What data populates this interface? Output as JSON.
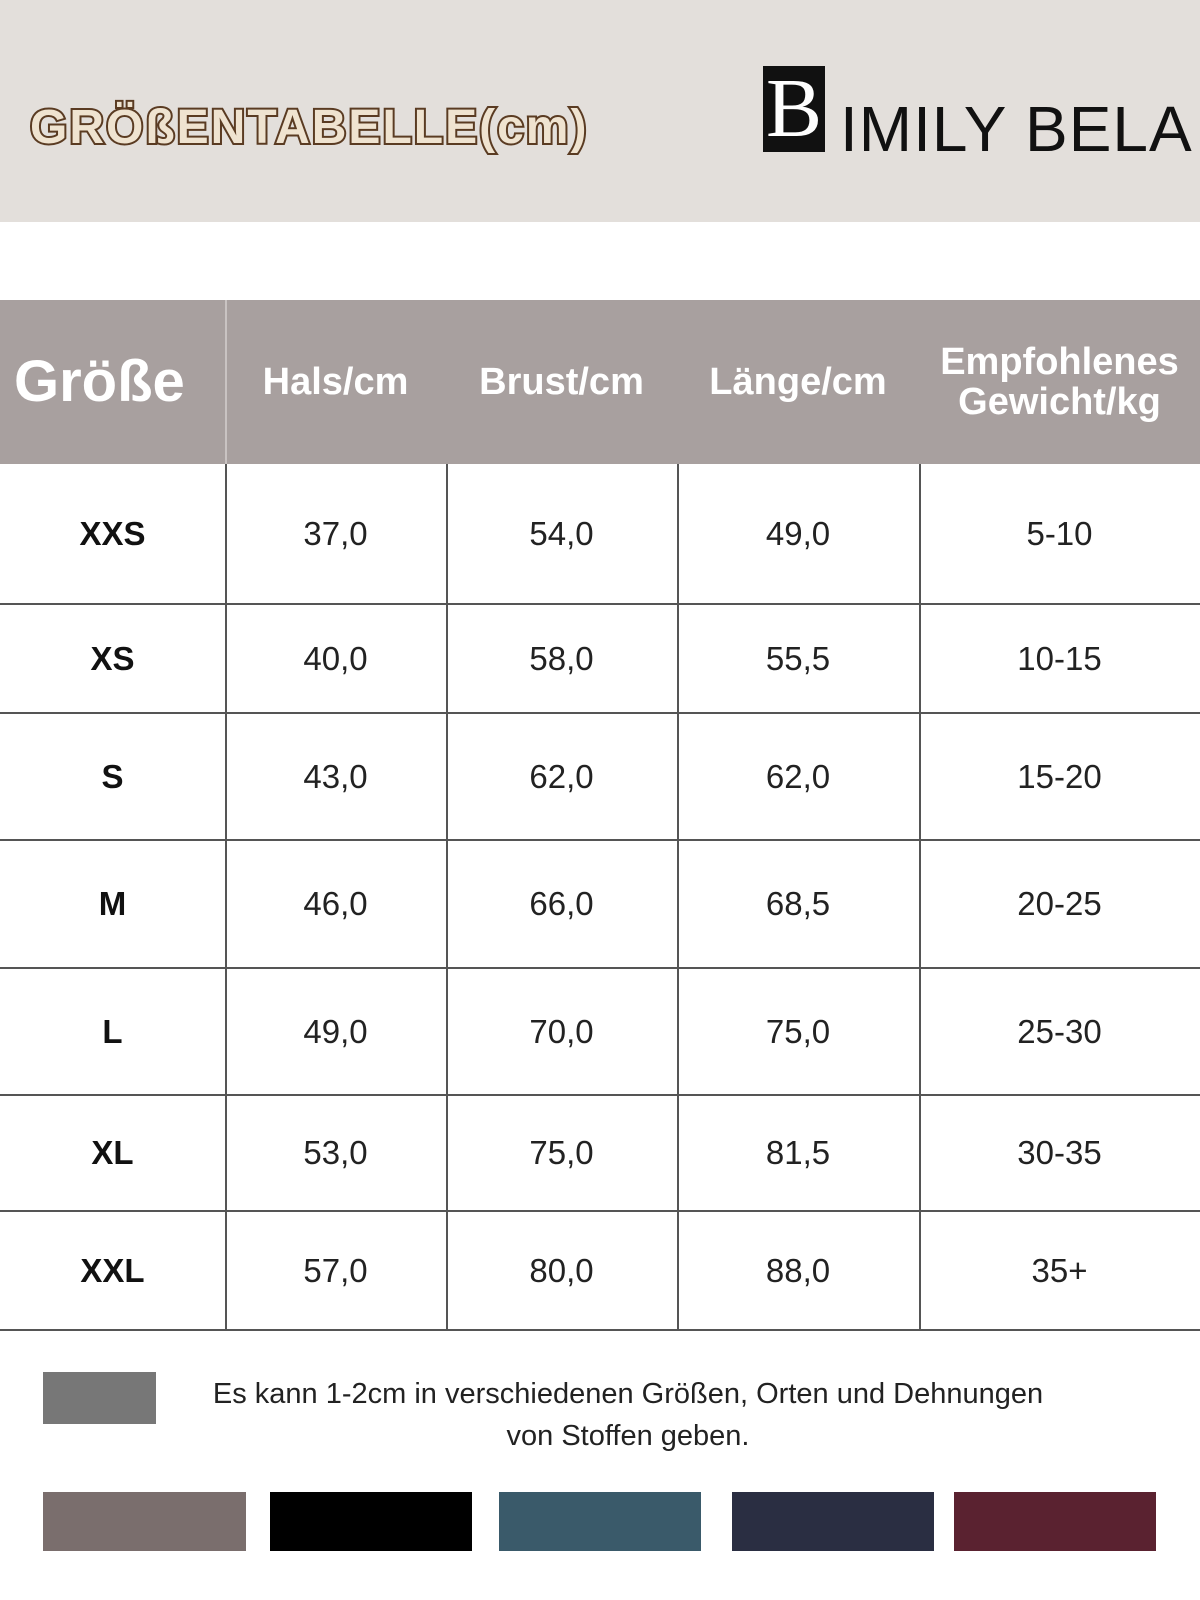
{
  "header": {
    "title": "GRÖßENTABELLE(cm)",
    "logo_letter": "B",
    "logo_text": "IMILY BELA"
  },
  "table": {
    "columns": [
      "Größe",
      "Hals/cm",
      "Brust/cm",
      "Länge/cm",
      "Empfohlenes Gewicht/kg"
    ],
    "rows": [
      [
        "XXS",
        "37,0",
        "54,0",
        "49,0",
        "5-10"
      ],
      [
        "XS",
        "40,0",
        "58,0",
        "55,5",
        "10-15"
      ],
      [
        "S",
        "43,0",
        "62,0",
        "62,0",
        "15-20"
      ],
      [
        "M",
        "46,0",
        "66,0",
        "68,5",
        "20-25"
      ],
      [
        "L",
        "49,0",
        "70,0",
        "75,0",
        "25-30"
      ],
      [
        "XL",
        "53,0",
        "75,0",
        "81,5",
        "30-35"
      ],
      [
        "XXL",
        "57,0",
        "80,0",
        "88,0",
        "35+"
      ]
    ]
  },
  "note": {
    "lines": [
      "Es kann 1-2cm in verschiedenen Größen, Orten und Dehnungen",
      "von Stoffen geben."
    ]
  }
}
